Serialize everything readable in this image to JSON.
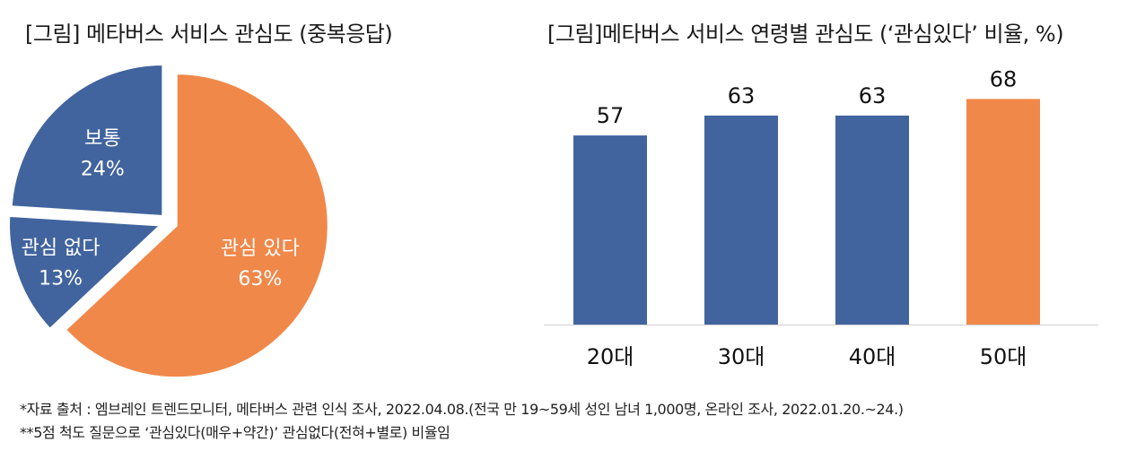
{
  "titles": {
    "pie": "[그림] 메타버스 서비스 관심도 (중복응답)",
    "bar": "[그림]메타버스 서비스 연령별 관심도 (‘관심있다’ 비율, %)"
  },
  "notes": [
    "*자료 출처 : 엠브레인 트렌드모니터, 메타버스 관련 인식 조사, 2022.04.08.(전국 만 19~59세 성인 남녀 1,000명, 온라인 조사, 2022.01.20.~24.)",
    "**5점 척도 질문으로 ‘관심있다(매우+약간)’ 관심없다(전혀+별로) 비율임"
  ],
  "chart_data": [
    {
      "type": "pie",
      "title": "[그림] 메타버스 서비스 관심도 (중복응답)",
      "slices": [
        {
          "label": "관심 있다",
          "value": 63,
          "display": "63%",
          "color": "#f0884a"
        },
        {
          "label": "관심 없다",
          "value": 13,
          "display": "13%",
          "color": "#41649e"
        },
        {
          "label": "보통",
          "value": 24,
          "display": "24%",
          "color": "#41649e"
        }
      ]
    },
    {
      "type": "bar",
      "title": "[그림]메타버스 서비스 연령별 관심도 (‘관심있다’ 비율, %)",
      "categories": [
        "20대",
        "30대",
        "40대",
        "50대"
      ],
      "values": [
        57,
        63,
        63,
        68
      ],
      "colors": [
        "#41649e",
        "#41649e",
        "#41649e",
        "#f0884a"
      ],
      "ylim": [
        0,
        80
      ]
    }
  ]
}
